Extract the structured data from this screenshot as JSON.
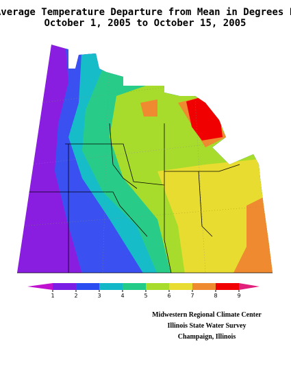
{
  "title": [
    "Average Temperature Departure from Mean in Degrees F",
    "October 1, 2005 to October 15, 2005"
  ],
  "legend": {
    "levels": [
      1,
      2,
      3,
      4,
      5,
      6,
      7,
      8,
      9
    ],
    "colors": [
      "#c010d0",
      "#7a1ee6",
      "#2b4cf0",
      "#12b8c8",
      "#22cc88",
      "#a8dc2c",
      "#e8dc30",
      "#f08a30",
      "#f00000",
      "#e0207a"
    ]
  },
  "credits": [
    "Midwestern Regional Climate Center",
    "Illinois State Water Survey",
    "Champaign, Illinois"
  ]
}
